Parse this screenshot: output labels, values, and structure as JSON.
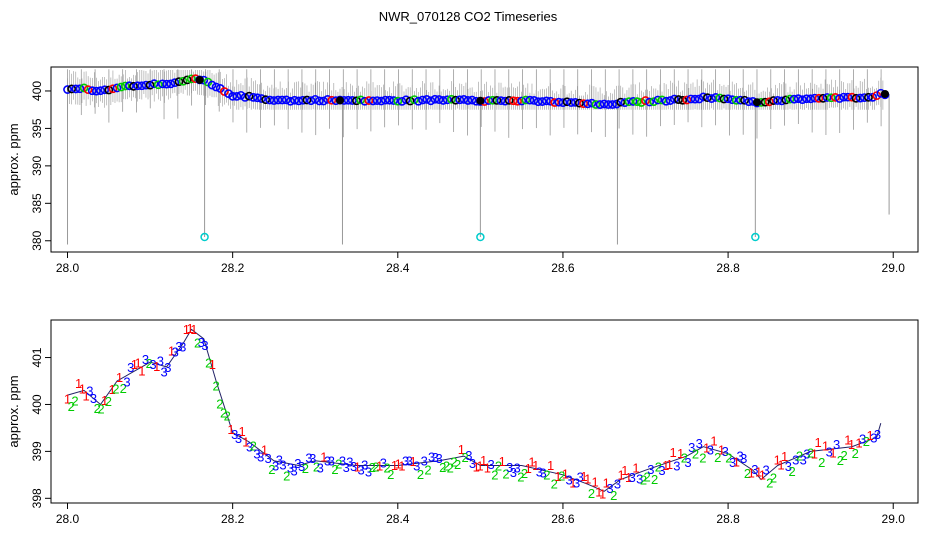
{
  "title": "NWR_070128  CO2 Timeseries",
  "chart_data": [
    {
      "type": "scatter",
      "panel": "top",
      "ylabel": "approx. ppm",
      "xlabel": "",
      "xlim": [
        27.98,
        29.03
      ],
      "ylim": [
        378.5,
        403.2
      ],
      "x_ticks": [
        "28.0",
        "28.2",
        "28.4",
        "28.6",
        "28.8",
        "29.0"
      ],
      "y_ticks": [
        "380",
        "385",
        "390",
        "395",
        "400"
      ],
      "grey_range_ppm": [
        397.5,
        402.8
      ],
      "calibration_drops": [
        {
          "x": 28.0,
          "bottom": 379.5
        },
        {
          "x": 28.166,
          "bottom": 380.5
        },
        {
          "x": 28.333,
          "bottom": 379.5
        },
        {
          "x": 28.5,
          "bottom": 380.5
        },
        {
          "x": 28.666,
          "bottom": 379.5
        },
        {
          "x": 28.833,
          "bottom": 380.5
        },
        {
          "x": 28.995,
          "bottom": 383.5
        }
      ],
      "cyan_points": [
        {
          "x": 28.166,
          "y": 380.5
        },
        {
          "x": 28.5,
          "y": 380.5
        },
        {
          "x": 28.833,
          "y": 380.5
        }
      ],
      "series_colors": {
        "grey": "#999999",
        "black": "#000000",
        "red": "#ff0000",
        "green": "#00cc00",
        "blue": "#0000ff",
        "cyan": "#00cccc"
      }
    },
    {
      "type": "scatter",
      "panel": "bottom",
      "ylabel": "approx. ppm",
      "xlabel": "",
      "xlim": [
        27.98,
        29.03
      ],
      "ylim": [
        397.9,
        401.8
      ],
      "x_ticks": [
        "28.0",
        "28.2",
        "28.4",
        "28.6",
        "28.8",
        "29.0"
      ],
      "y_ticks": [
        "398",
        "399",
        "400",
        "401"
      ],
      "marker_labels": [
        "1",
        "2",
        "3"
      ],
      "series_colors": {
        "1": "#ff0000",
        "2": "#00cc00",
        "3": "#0000ff"
      },
      "trend": {
        "x": [
          28.0,
          28.02,
          28.04,
          28.06,
          28.08,
          28.1,
          28.12,
          28.14,
          28.15,
          28.165,
          28.18,
          28.2,
          28.22,
          28.25,
          28.28,
          28.3,
          28.35,
          28.4,
          28.45,
          28.48,
          28.5,
          28.55,
          28.6,
          28.63,
          28.65,
          28.67,
          28.7,
          28.75,
          28.77,
          28.8,
          28.83,
          28.84,
          28.86,
          28.9,
          28.95,
          28.98,
          28.985
        ],
        "y": [
          400.2,
          400.3,
          400.0,
          400.5,
          400.7,
          400.9,
          400.8,
          401.3,
          401.6,
          401.4,
          400.5,
          399.4,
          399.2,
          398.8,
          398.7,
          398.8,
          398.7,
          398.7,
          398.8,
          398.9,
          398.7,
          398.7,
          398.5,
          398.3,
          398.15,
          398.4,
          398.6,
          398.9,
          399.1,
          398.95,
          398.6,
          398.4,
          398.7,
          399.0,
          399.1,
          399.3,
          399.6
        ]
      }
    }
  ]
}
